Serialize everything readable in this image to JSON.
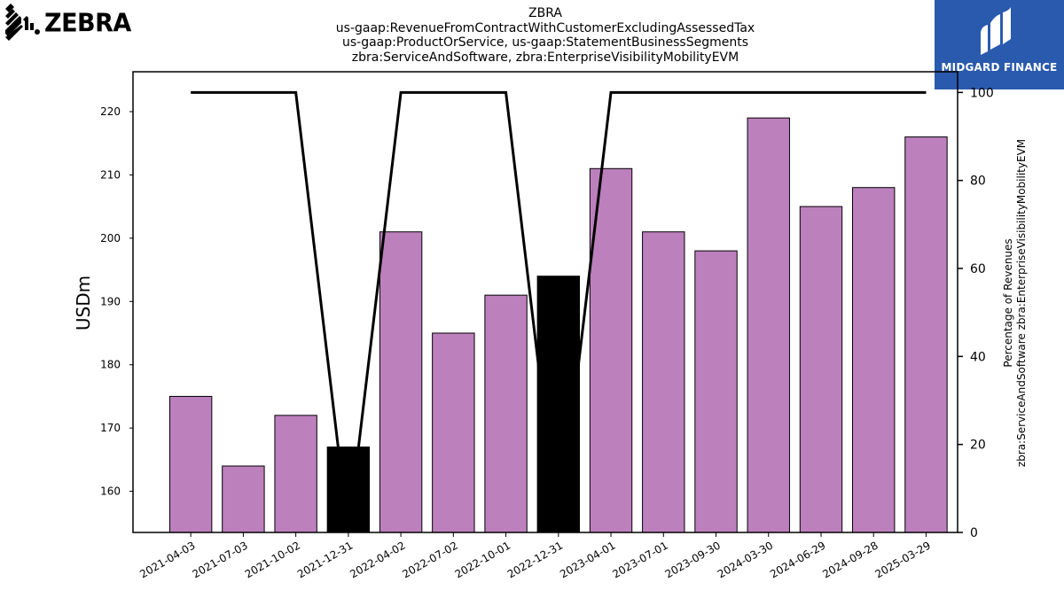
{
  "header": {
    "logo_text": "ZEBRA",
    "title_lines": [
      "ZBRA",
      "us-gaap:RevenueFromContractWithCustomerExcludingAssessedTax",
      "us-gaap:ProductOrService, us-gaap:StatementBusinessSegments",
      "zbra:ServiceAndSoftware, zbra:EnterpriseVisibilityMobilityEVM"
    ],
    "badge_text": "MIDGARD FINANCE",
    "badge_color": "#2a5aad"
  },
  "chart_data": {
    "type": "bar",
    "categories": [
      "2021-04-03",
      "2021-07-03",
      "2021-10-02",
      "2021-12-31",
      "2022-04-02",
      "2022-07-02",
      "2022-10-01",
      "2022-12-31",
      "2023-04-01",
      "2023-07-01",
      "2023-09-30",
      "2024-03-30",
      "2024-06-29",
      "2024-09-28",
      "2025-03-29"
    ],
    "series": [
      {
        "values": [
          175,
          164,
          172,
          167,
          201,
          185,
          191,
          194,
          211,
          201,
          198,
          219,
          205,
          208,
          216
        ],
        "axis": "left",
        "color": "#bc80bd",
        "highlight_color": "#000000",
        "highlight_indices": [
          3,
          7
        ]
      },
      {
        "values": [
          100,
          100,
          100,
          0,
          100,
          100,
          100,
          0,
          100,
          100,
          100,
          100,
          100,
          100,
          100
        ],
        "axis": "right",
        "type": "line",
        "color": "#000000"
      }
    ],
    "ylabel": "USDm",
    "ylabel_right_lines": [
      "Percentage of Revenues",
      "zbra:ServiceAndSoftware zbra:EnterpriseVisibilityMobilityEVM"
    ],
    "ylim": [
      153.5,
      226.3
    ],
    "ylim_right": [
      0,
      104.7
    ],
    "yticks": [
      160,
      170,
      180,
      190,
      200,
      210,
      220
    ],
    "yticks_right": [
      0,
      20,
      40,
      60,
      80,
      100
    ],
    "grid": false
  }
}
